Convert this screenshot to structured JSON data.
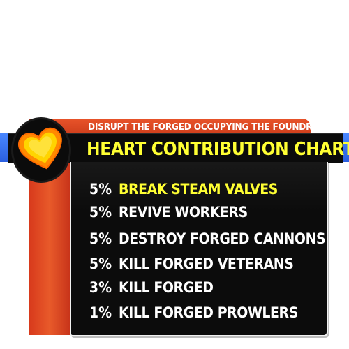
{
  "header": {
    "subtitle": "DISRUPT THE FORGED OCCUPYING THE FOUNDRY",
    "title": "HEART CONTRIBUTION CHART"
  },
  "emblem": {
    "icon": "heart-icon"
  },
  "rows": [
    {
      "percent": "5%",
      "label": "BREAK STEAM VALVES",
      "highlighted": true
    },
    {
      "percent": "5%",
      "label": "REVIVE WORKERS",
      "highlighted": false
    },
    {
      "percent": "5%",
      "label": "DESTROY FORGED CANNONS",
      "highlighted": false
    },
    {
      "percent": "5%",
      "label": "KILL FORGED VETERANS",
      "highlighted": false
    },
    {
      "percent": "3%",
      "label": "KILL FORGED",
      "highlighted": false
    },
    {
      "percent": "1%",
      "label": "KILL FORGED PROWLERS",
      "highlighted": false
    }
  ],
  "colors": {
    "title": "#ffff33",
    "highlight": "#ffff33",
    "text": "#ffffff",
    "ribbon": "#e04a24",
    "panel": "#0c0c0c",
    "accent_blue": "#3a72f0",
    "heart_fill": "#ffd000",
    "heart_outline": "#ff7a00"
  }
}
